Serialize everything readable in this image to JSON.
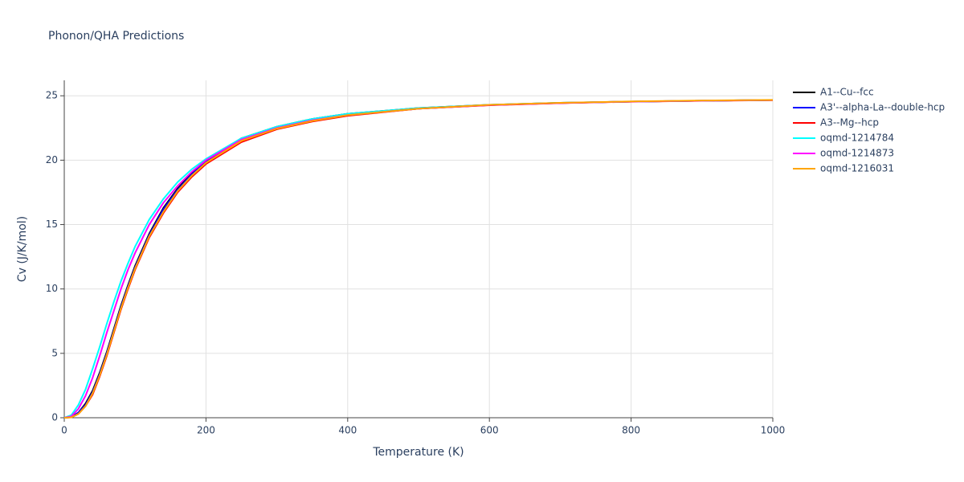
{
  "chart_data": {
    "type": "line",
    "title": "Phonon/QHA Predictions",
    "xlabel": "Temperature (K)",
    "ylabel": "Cv (J/K/mol)",
    "x": [
      0,
      10,
      20,
      30,
      40,
      50,
      60,
      70,
      80,
      90,
      100,
      120,
      140,
      160,
      180,
      200,
      250,
      300,
      350,
      400,
      500,
      600,
      700,
      800,
      900,
      1000
    ],
    "series": [
      {
        "name": "A1--Cu--fcc",
        "color": "#000000",
        "values": [
          0,
          0.05,
          0.4,
          1.1,
          2.1,
          3.5,
          5.1,
          6.9,
          8.7,
          10.3,
          11.8,
          14.3,
          16.3,
          17.8,
          19.0,
          20.0,
          21.7,
          22.6,
          23.2,
          23.6,
          24.05,
          24.3,
          24.45,
          24.55,
          24.62,
          24.67
        ]
      },
      {
        "name": "A3'--alpha-La--double-hcp",
        "color": "#0000ff",
        "values": [
          0,
          0.05,
          0.4,
          1.0,
          2.0,
          3.4,
          5.0,
          6.8,
          8.6,
          10.2,
          11.7,
          14.2,
          16.2,
          17.7,
          18.9,
          19.9,
          21.6,
          22.5,
          23.1,
          23.5,
          24.0,
          24.28,
          24.44,
          24.55,
          24.62,
          24.67
        ]
      },
      {
        "name": "A3--Mg--hcp",
        "color": "#ff0000",
        "values": [
          0,
          0.03,
          0.3,
          0.9,
          1.8,
          3.2,
          4.8,
          6.6,
          8.4,
          10.0,
          11.5,
          14.0,
          15.9,
          17.5,
          18.7,
          19.7,
          21.4,
          22.4,
          23.0,
          23.45,
          24.0,
          24.27,
          24.43,
          24.54,
          24.61,
          24.66
        ]
      },
      {
        "name": "oqmd-1214784",
        "color": "#00ffff",
        "values": [
          0,
          0.2,
          1.0,
          2.2,
          3.8,
          5.5,
          7.3,
          9.0,
          10.6,
          12.0,
          13.3,
          15.4,
          17.0,
          18.3,
          19.3,
          20.1,
          21.7,
          22.6,
          23.2,
          23.6,
          24.05,
          24.3,
          24.45,
          24.55,
          24.62,
          24.67
        ]
      },
      {
        "name": "oqmd-1214873",
        "color": "#ff00ff",
        "values": [
          0,
          0.1,
          0.7,
          1.7,
          3.1,
          4.8,
          6.6,
          8.3,
          10.0,
          11.5,
          12.8,
          15.0,
          16.7,
          18.0,
          19.1,
          20.0,
          21.6,
          22.5,
          23.1,
          23.5,
          24.0,
          24.28,
          24.44,
          24.55,
          24.62,
          24.67
        ]
      },
      {
        "name": "oqmd-1216031",
        "color": "#ffa500",
        "values": [
          0,
          0.03,
          0.3,
          0.9,
          1.9,
          3.3,
          4.9,
          6.7,
          8.5,
          10.1,
          11.6,
          14.1,
          16.0,
          17.6,
          18.8,
          19.8,
          21.5,
          22.45,
          23.05,
          23.5,
          24.0,
          24.3,
          24.45,
          24.56,
          24.63,
          24.68
        ]
      }
    ],
    "xlim": [
      0,
      1000
    ],
    "xticks": [
      0,
      200,
      400,
      600,
      800,
      1000
    ],
    "ylim": [
      0,
      26.2
    ],
    "yticks": [
      0,
      5,
      10,
      15,
      20,
      25
    ],
    "grid": true
  }
}
